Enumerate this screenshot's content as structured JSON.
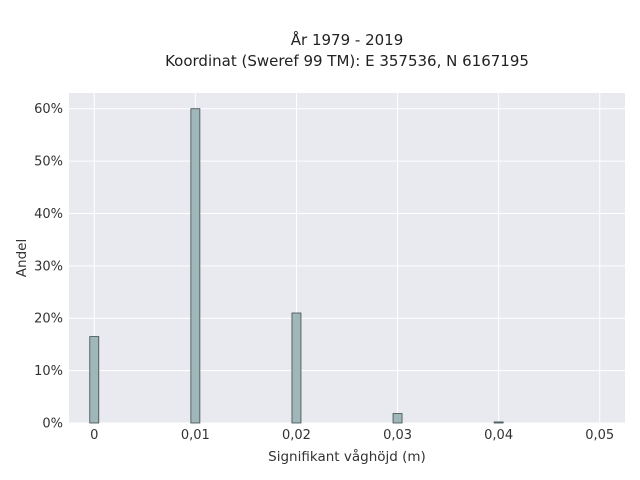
{
  "chart_data": {
    "type": "bar",
    "title": [
      "År 1979 - 2019",
      "Koordinat (Sweref 99 TM): E 357536, N 6167195"
    ],
    "xlabel": "Signifikant våghöjd (m)",
    "ylabel": "Andel",
    "x": [
      0,
      0.01,
      0.02,
      0.03,
      0.04
    ],
    "values": [
      16.5,
      60,
      21,
      1.8,
      0.2
    ],
    "xlim": [
      -0.0025,
      0.0525
    ],
    "ylim": [
      0,
      63
    ],
    "xticks": [
      0,
      0.01,
      0.02,
      0.03,
      0.04,
      0.05
    ],
    "xtick_labels": [
      "0",
      "0,01",
      "0,02",
      "0,03",
      "0,04",
      "0,05"
    ],
    "yticks": [
      0,
      10,
      20,
      30,
      40,
      50,
      60
    ],
    "ytick_labels": [
      "0%",
      "10%",
      "20%",
      "30%",
      "40%",
      "50%",
      "60%"
    ],
    "grid": true,
    "colors": {
      "bar_fill": "#9fb7b8",
      "bar_edge": "#3d4a4a",
      "plot_bg": "#e9e9f0",
      "grid": "#ffffff"
    }
  }
}
